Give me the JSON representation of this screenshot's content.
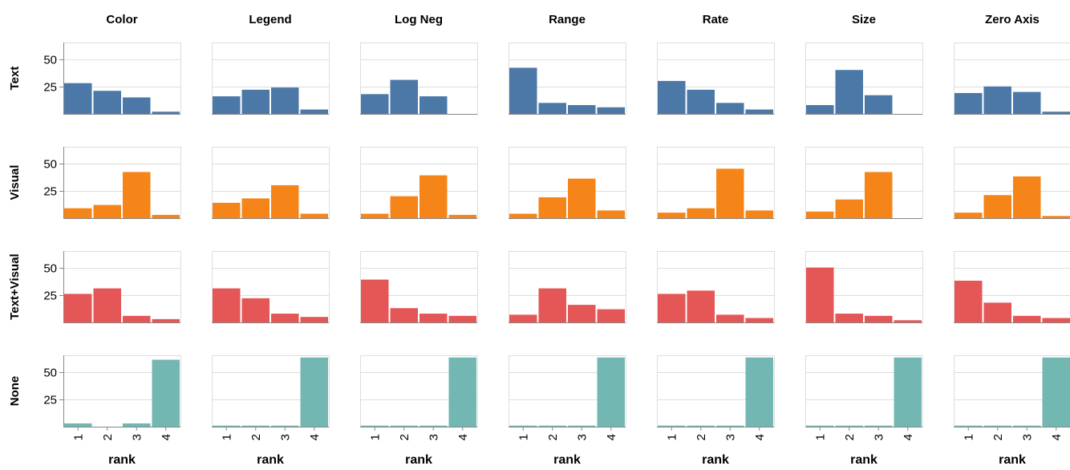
{
  "chart_data": {
    "type": "bar",
    "layout": "faceted-grid",
    "column_field_values": [
      "Color",
      "Legend",
      "Log Neg",
      "Range",
      "Rate",
      "Size",
      "Zero Axis"
    ],
    "row_field_values": [
      "Text",
      "Visual",
      "Text+Visual",
      "None"
    ],
    "categories": [
      1,
      2,
      3,
      4
    ],
    "xlabel": "rank",
    "ylabel": "",
    "ylim": [
      0,
      65
    ],
    "y_ticks": [
      25,
      50
    ],
    "grid": true,
    "row_colors": {
      "Text": "#4c78a8",
      "Visual": "#f58518",
      "Text+Visual": "#e45756",
      "None": "#72b7b2"
    },
    "values": {
      "Text": {
        "Color": [
          28,
          21,
          15,
          2
        ],
        "Legend": [
          16,
          22,
          24,
          4
        ],
        "Log Neg": [
          18,
          31,
          16,
          0
        ],
        "Range": [
          42,
          10,
          8,
          6
        ],
        "Rate": [
          30,
          22,
          10,
          4
        ],
        "Size": [
          8,
          40,
          17,
          0
        ],
        "Zero Axis": [
          19,
          25,
          20,
          2
        ]
      },
      "Visual": {
        "Color": [
          9,
          12,
          42,
          3
        ],
        "Legend": [
          14,
          18,
          30,
          4
        ],
        "Log Neg": [
          4,
          20,
          39,
          3
        ],
        "Range": [
          4,
          19,
          36,
          7
        ],
        "Rate": [
          5,
          9,
          45,
          7
        ],
        "Size": [
          6,
          17,
          42,
          0
        ],
        "Zero Axis": [
          5,
          21,
          38,
          2
        ]
      },
      "Text+Visual": {
        "Color": [
          26,
          31,
          6,
          3
        ],
        "Legend": [
          31,
          22,
          8,
          5
        ],
        "Log Neg": [
          39,
          13,
          8,
          6
        ],
        "Range": [
          7,
          31,
          16,
          12
        ],
        "Rate": [
          26,
          29,
          7,
          4
        ],
        "Size": [
          50,
          8,
          6,
          2
        ],
        "Zero Axis": [
          38,
          18,
          6,
          4
        ]
      },
      "None": {
        "Color": [
          3,
          0,
          3,
          61
        ],
        "Legend": [
          1,
          1,
          1,
          63
        ],
        "Log Neg": [
          1,
          1,
          1,
          63
        ],
        "Range": [
          1,
          1,
          1,
          63
        ],
        "Rate": [
          1,
          1,
          1,
          63
        ],
        "Size": [
          1,
          1,
          1,
          63
        ],
        "Zero Axis": [
          1,
          1,
          1,
          63
        ]
      }
    }
  }
}
